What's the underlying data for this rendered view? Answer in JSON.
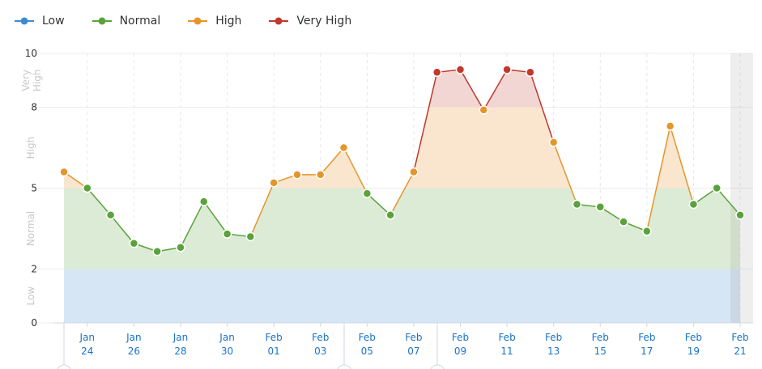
{
  "chart_data": {
    "type": "area",
    "title": "",
    "xlabel": "",
    "ylabel": "",
    "ylim": [
      0,
      10
    ],
    "yticks": [
      0,
      2,
      5,
      8,
      10
    ],
    "legend_position": "top-left",
    "grid": true,
    "zones": [
      {
        "name": "Low",
        "from": 0,
        "to": 2,
        "color": "#3c8bd0",
        "fill": "#d6e6f4",
        "label": "Low"
      },
      {
        "name": "Normal",
        "from": 2,
        "to": 5,
        "color": "#5aa23c",
        "fill": "#dcebd5",
        "label": "Normal"
      },
      {
        "name": "High",
        "from": 5,
        "to": 8,
        "color": "#e4962d",
        "fill": "#fae6cf",
        "label": "High"
      },
      {
        "name": "Very High",
        "from": 8,
        "to": 10,
        "color": "#c0392b",
        "fill": "#f2d6d3",
        "label": "Very\nHigh"
      }
    ],
    "x_tick_labels": [
      {
        "day": 24,
        "month": "Jan",
        "date": "24"
      },
      {
        "day": 26,
        "month": "Jan",
        "date": "26"
      },
      {
        "day": 28,
        "month": "Jan",
        "date": "28"
      },
      {
        "day": 30,
        "month": "Jan",
        "date": "30"
      },
      {
        "day": 32,
        "month": "Feb",
        "date": "01"
      },
      {
        "day": 34,
        "month": "Feb",
        "date": "03"
      },
      {
        "day": 36,
        "month": "Feb",
        "date": "05"
      },
      {
        "day": 38,
        "month": "Feb",
        "date": "07"
      },
      {
        "day": 40,
        "month": "Feb",
        "date": "09"
      },
      {
        "day": 42,
        "month": "Feb",
        "date": "11"
      },
      {
        "day": 44,
        "month": "Feb",
        "date": "13"
      },
      {
        "day": 46,
        "month": "Feb",
        "date": "15"
      },
      {
        "day": 48,
        "month": "Feb",
        "date": "17"
      },
      {
        "day": 50,
        "month": "Feb",
        "date": "19"
      },
      {
        "day": 52,
        "month": "Feb",
        "date": "21"
      }
    ],
    "x_days": [
      23,
      24,
      25,
      26,
      27,
      28,
      29,
      30,
      31,
      32,
      33,
      34,
      35,
      36,
      37,
      38,
      39,
      40,
      41,
      42,
      43,
      44,
      45,
      46,
      47,
      48,
      49,
      50,
      51,
      52
    ],
    "values": [
      5.6,
      5.0,
      4.0,
      2.95,
      2.65,
      2.8,
      4.5,
      3.3,
      3.2,
      5.2,
      5.5,
      5.5,
      6.5,
      4.8,
      4.0,
      5.6,
      9.3,
      9.4,
      7.9,
      9.4,
      9.3,
      6.7,
      4.4,
      4.3,
      3.75,
      3.4,
      7.3,
      4.4,
      5.0,
      4.0
    ]
  }
}
